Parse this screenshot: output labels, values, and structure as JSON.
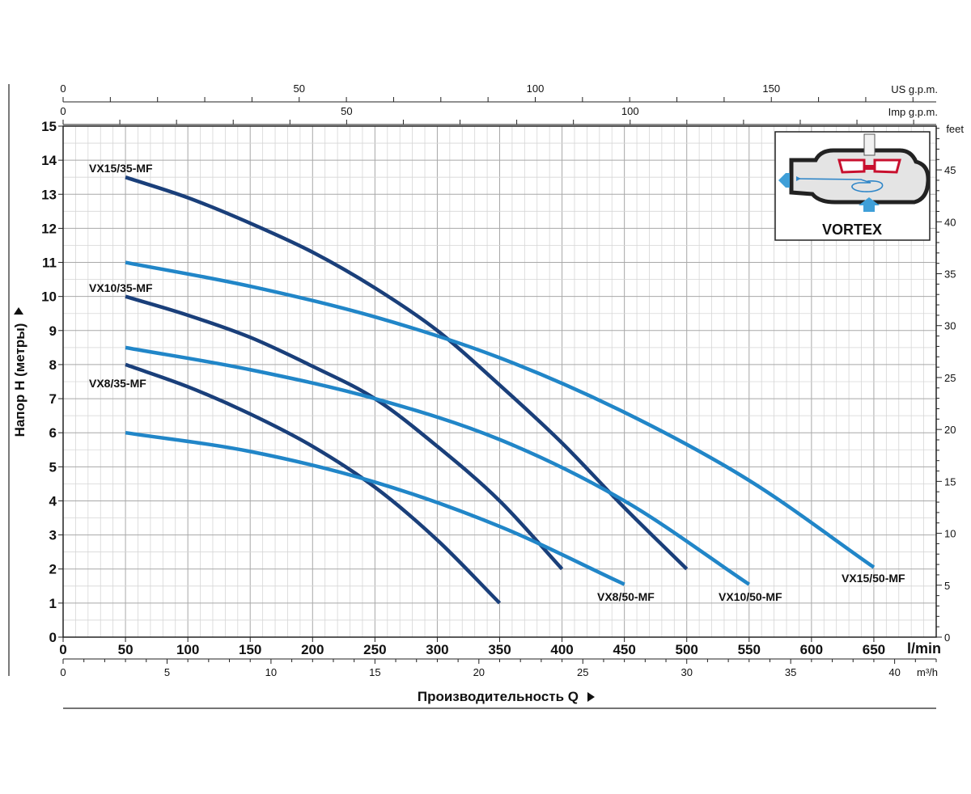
{
  "chart_data": {
    "type": "line",
    "xlabel": "Производительность Q",
    "ylabel": "Напор H (метры)",
    "x_unit": "l/min",
    "y_unit": "m",
    "xlim": [
      0,
      700
    ],
    "ylim": [
      0,
      15
    ],
    "grid": true,
    "x_ticks": [
      "0",
      "50",
      "100",
      "150",
      "200",
      "250",
      "300",
      "350",
      "400",
      "450",
      "500",
      "550",
      "600",
      "650"
    ],
    "y_ticks": [
      "0",
      "1",
      "2",
      "3",
      "4",
      "5",
      "6",
      "7",
      "8",
      "9",
      "10",
      "11",
      "12",
      "13",
      "14",
      "15"
    ],
    "series": [
      {
        "name": "VX15/35-MF",
        "color": "#1a3f7a",
        "x": [
          50,
          100,
          150,
          200,
          250,
          300,
          350,
          400,
          450,
          500
        ],
        "y": [
          13.5,
          12.9,
          12.15,
          11.3,
          10.25,
          9.0,
          7.4,
          5.7,
          3.8,
          2.0
        ]
      },
      {
        "name": "VX10/35-MF",
        "color": "#1a3f7a",
        "x": [
          50,
          100,
          150,
          200,
          250,
          300,
          350,
          400
        ],
        "y": [
          10.0,
          9.45,
          8.8,
          7.95,
          7.0,
          5.6,
          4.0,
          2.0
        ]
      },
      {
        "name": "VX8/35-MF",
        "color": "#1a3f7a",
        "x": [
          50,
          100,
          150,
          200,
          250,
          300,
          350
        ],
        "y": [
          8.0,
          7.35,
          6.55,
          5.6,
          4.4,
          2.85,
          1.0
        ]
      },
      {
        "name": "VX15/50-MF",
        "color": "#2186c8",
        "x": [
          50,
          150,
          250,
          350,
          450,
          550,
          650
        ],
        "y": [
          11.0,
          10.3,
          9.4,
          8.2,
          6.6,
          4.6,
          2.05
        ]
      },
      {
        "name": "VX10/50-MF",
        "color": "#2186c8",
        "x": [
          50,
          150,
          250,
          350,
          450,
          550
        ],
        "y": [
          8.5,
          7.85,
          7.0,
          5.8,
          4.0,
          1.55
        ]
      },
      {
        "name": "VX8/50-MF",
        "color": "#2186c8",
        "x": [
          50,
          150,
          250,
          350,
          450
        ],
        "y": [
          6.0,
          5.45,
          4.55,
          3.25,
          1.55
        ]
      }
    ]
  },
  "secondary_axes": {
    "us_gpm": {
      "label": "US g.p.m.",
      "ticks": [
        "0",
        "50",
        "100",
        "150"
      ]
    },
    "imp_gpm": {
      "label": "Imp g.p.m.",
      "ticks": [
        "0",
        "50",
        "100"
      ]
    },
    "m3h": {
      "label": "m³/h",
      "ticks": [
        "0",
        "5",
        "10",
        "15",
        "20",
        "25",
        "30",
        "35",
        "40"
      ]
    },
    "feet": {
      "label": "feet",
      "ticks": [
        "0",
        "5",
        "10",
        "15",
        "20",
        "25",
        "30",
        "35",
        "40",
        "45"
      ]
    }
  },
  "inset": {
    "label": "VORTEX"
  },
  "colors": {
    "dark_curve": "#1a3f7a",
    "light_curve": "#2186c8",
    "grid": "#b9b9b9",
    "impeller": "#c8102e"
  }
}
